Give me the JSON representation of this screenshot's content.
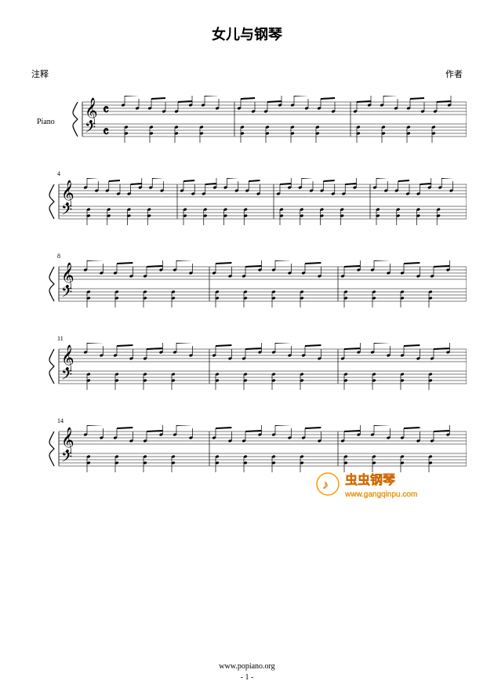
{
  "title": "女儿与钢琴",
  "credit_left": "注释",
  "credit_right": "作者",
  "instrument": "Piano",
  "systems": [
    {
      "measure_number": "",
      "measures": 3,
      "first": true
    },
    {
      "measure_number": "4",
      "measures": 4,
      "first": false
    },
    {
      "measure_number": "8",
      "measures": 3,
      "first": false
    },
    {
      "measure_number": "11",
      "measures": 3,
      "first": false
    },
    {
      "measure_number": "14",
      "measures": 3,
      "first": false
    }
  ],
  "footer_url": "www.popiano.org",
  "footer_page": "- 1 -",
  "watermark": {
    "brand": "虫虫钢琴",
    "url": "www.gangqinpu.com",
    "orange": "#ff9900",
    "dark_orange": "#cc6600"
  },
  "colors": {
    "staff_line": "#000000",
    "note": "#000000",
    "background": "#ffffff"
  },
  "layout": {
    "staff_width": 560,
    "staff_indent_first": 70,
    "staff_indent_rest": 40,
    "line_gap": 4,
    "staff_gap": 28
  }
}
